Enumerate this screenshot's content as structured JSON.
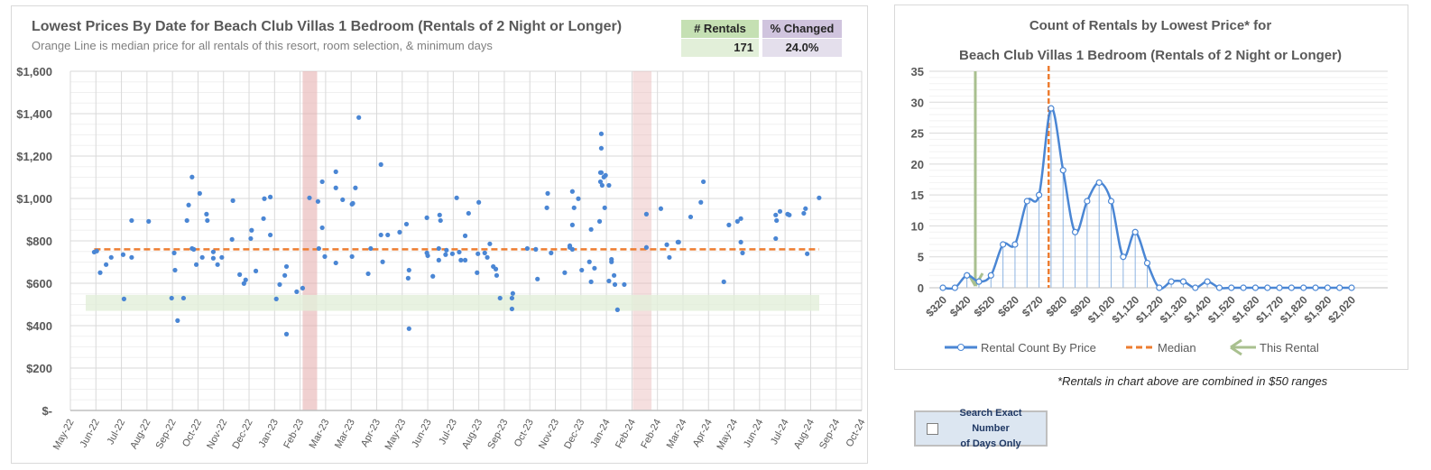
{
  "left_header": {
    "title": "Lowest Prices By Date for Beach Club Villas 1 Bedroom (Rentals of 2 Night or Longer)",
    "subtitle": "Orange Line is median price for all rentals of this resort, room selection, & minimum days",
    "rentals_label": "# Rentals",
    "rentals_value": "171",
    "changed_label": "% Changed",
    "changed_value": "24.0%"
  },
  "colors": {
    "points": "#4a86d4",
    "median": "#ed7d31",
    "band": "#e2efd9",
    "shade": "#e6b0b0",
    "rental_green": "#a9c08f",
    "rentals_head": "#c5e0b3",
    "rentals_body": "#e2efd9",
    "changed_head": "#d0c4de",
    "changed_body": "#e4dfec"
  },
  "chart_data": [
    {
      "type": "scatter",
      "title": "Lowest Prices By Date for Beach Club Villas 1 Bedroom (Rentals of 2 Night or Longer)",
      "x_unit": "days since 2022-05-01 (axis ticks every 30 days)",
      "x_tick_labels": [
        "May-22",
        "Jun-22",
        "Jul-22",
        "Aug-22",
        "Sep-22",
        "Oct-22",
        "Nov-22",
        "Dec-22",
        "Jan-23",
        "Feb-23",
        "Mar-23",
        "Mar-23",
        "Apr-23",
        "May-23",
        "Jun-23",
        "Jul-23",
        "Aug-23",
        "Sep-23",
        "Oct-23",
        "Nov-23",
        "Dec-23",
        "Jan-24",
        "Feb-24",
        "Feb-24",
        "Mar-24",
        "Apr-24",
        "May-24",
        "Jun-24",
        "Jul-24",
        "Aug-24",
        "Sep-24",
        "Oct-24"
      ],
      "y_tick_labels": [
        "$-",
        "$200",
        "$400",
        "$600",
        "$800",
        "$1,000",
        "$1,200",
        "$1,400",
        "$1,600"
      ],
      "ylim": [
        0,
        1600
      ],
      "median_price": 760,
      "median_x_range": [
        28,
        880
      ],
      "this_rental_band": [
        470,
        545
      ],
      "shaded_date_ranges": [
        [
          273,
          290
        ],
        [
          661,
          683
        ]
      ],
      "points": [
        [
          28,
          747
        ],
        [
          31,
          752
        ],
        [
          35,
          650
        ],
        [
          42,
          688
        ],
        [
          48,
          722
        ],
        [
          62,
          735
        ],
        [
          63,
          526
        ],
        [
          72,
          896
        ],
        [
          72,
          722
        ],
        [
          92,
          892
        ],
        [
          119,
          530
        ],
        [
          122,
          743
        ],
        [
          123,
          662
        ],
        [
          126,
          424
        ],
        [
          133,
          530
        ],
        [
          137,
          896
        ],
        [
          139,
          969
        ],
        [
          143,
          1101
        ],
        [
          143,
          764
        ],
        [
          145,
          760
        ],
        [
          148,
          688
        ],
        [
          152,
          1024
        ],
        [
          155,
          722
        ],
        [
          160,
          926
        ],
        [
          161,
          896
        ],
        [
          168,
          748
        ],
        [
          168,
          718
        ],
        [
          173,
          688
        ],
        [
          178,
          722
        ],
        [
          190,
          807
        ],
        [
          191,
          990
        ],
        [
          199,
          641
        ],
        [
          204,
          599
        ],
        [
          206,
          616
        ],
        [
          212,
          811
        ],
        [
          213,
          850
        ],
        [
          218,
          658
        ],
        [
          227,
          905
        ],
        [
          228,
          999
        ],
        [
          235,
          1007
        ],
        [
          235,
          828
        ],
        [
          242,
          526
        ],
        [
          246,
          594
        ],
        [
          252,
          637
        ],
        [
          254,
          679
        ],
        [
          254,
          360
        ],
        [
          266,
          560
        ],
        [
          273,
          577
        ],
        [
          281,
          1003
        ],
        [
          291,
          986
        ],
        [
          292,
          764
        ],
        [
          296,
          1079
        ],
        [
          296,
          862
        ],
        [
          299,
          726
        ],
        [
          312,
          1126
        ],
        [
          312,
          1050
        ],
        [
          312,
          696
        ],
        [
          320,
          994
        ],
        [
          331,
          973
        ],
        [
          332,
          977
        ],
        [
          331,
          726
        ],
        [
          335,
          1050
        ],
        [
          339,
          1382
        ],
        [
          350,
          645
        ],
        [
          353,
          764
        ],
        [
          365,
          1160
        ],
        [
          365,
          828
        ],
        [
          367,
          701
        ],
        [
          373,
          828
        ],
        [
          387,
          841
        ],
        [
          395,
          879
        ],
        [
          397,
          624
        ],
        [
          398,
          662
        ],
        [
          398,
          386
        ],
        [
          419,
          909
        ],
        [
          419,
          743
        ],
        [
          420,
          730
        ],
        [
          426,
          633
        ],
        [
          433,
          764
        ],
        [
          433,
          709
        ],
        [
          434,
          922
        ],
        [
          435,
          896
        ],
        [
          441,
          735
        ],
        [
          442,
          756
        ],
        [
          449,
          739
        ],
        [
          454,
          1003
        ],
        [
          457,
          747
        ],
        [
          459,
          709
        ],
        [
          464,
          824
        ],
        [
          464,
          709
        ],
        [
          468,
          930
        ],
        [
          478,
          650
        ],
        [
          479,
          739
        ],
        [
          480,
          982
        ],
        [
          487,
          743
        ],
        [
          490,
          722
        ],
        [
          493,
          786
        ],
        [
          497,
          679
        ],
        [
          500,
          667
        ],
        [
          501,
          637
        ],
        [
          505,
          530
        ],
        [
          519,
          530
        ],
        [
          519,
          479
        ],
        [
          520,
          552
        ],
        [
          537,
          764
        ],
        [
          547,
          760
        ],
        [
          549,
          620
        ],
        [
          560,
          956
        ],
        [
          561,
          1024
        ],
        [
          565,
          743
        ],
        [
          581,
          650
        ],
        [
          587,
          777
        ],
        [
          587,
          769
        ],
        [
          590,
          760
        ],
        [
          590,
          875
        ],
        [
          590,
          1033
        ],
        [
          592,
          956
        ],
        [
          597,
          999
        ],
        [
          601,
          662
        ],
        [
          610,
          701
        ],
        [
          612,
          854
        ],
        [
          612,
          607
        ],
        [
          616,
          671
        ],
        [
          622,
          892
        ],
        [
          624,
          1305
        ],
        [
          624,
          1237
        ],
        [
          623,
          1122
        ],
        [
          624,
          1122
        ],
        [
          623,
          1079
        ],
        [
          625,
          1062
        ],
        [
          627,
          1101
        ],
        [
          629,
          1109
        ],
        [
          628,
          956
        ],
        [
          633,
          1062
        ],
        [
          636,
          713
        ],
        [
          636,
          701
        ],
        [
          633,
          611
        ],
        [
          639,
          637
        ],
        [
          640,
          594
        ],
        [
          643,
          475
        ],
        [
          651,
          594
        ],
        [
          677,
          926
        ],
        [
          677,
          769
        ],
        [
          694,
          952
        ],
        [
          701,
          782
        ],
        [
          704,
          722
        ],
        [
          714,
          794
        ],
        [
          715,
          794
        ],
        [
          729,
          913
        ],
        [
          741,
          982
        ],
        [
          744,
          1079
        ],
        [
          768,
          607
        ],
        [
          774,
          875
        ],
        [
          784,
          892
        ],
        [
          788,
          905
        ],
        [
          788,
          794
        ],
        [
          790,
          743
        ],
        [
          829,
          811
        ],
        [
          829,
          922
        ],
        [
          830,
          896
        ],
        [
          834,
          939
        ],
        [
          843,
          926
        ],
        [
          845,
          922
        ],
        [
          862,
          930
        ],
        [
          864,
          952
        ],
        [
          866,
          739
        ],
        [
          880,
          1003
        ]
      ]
    },
    {
      "type": "line",
      "title_line1": "Count of Rentals by Lowest Price* for",
      "title_line2": "Beach Club Villas 1 Bedroom (Rentals of 2 Night or Longer)",
      "x": [
        320,
        370,
        420,
        470,
        520,
        570,
        620,
        670,
        720,
        770,
        820,
        870,
        920,
        970,
        1020,
        1070,
        1120,
        1170,
        1220,
        1270,
        1320,
        1370,
        1420,
        1470,
        1520,
        1570,
        1620,
        1670,
        1720,
        1770,
        1820,
        1870,
        1920,
        1970,
        2020
      ],
      "values": [
        0,
        0,
        2,
        1,
        2,
        7,
        7,
        14,
        15,
        29,
        19,
        9,
        14,
        17,
        14,
        5,
        9,
        4,
        0,
        1,
        1,
        0,
        1,
        0,
        0,
        0,
        0,
        0,
        0,
        0,
        0,
        0,
        0,
        0,
        0
      ],
      "x_tick_labels": [
        "$320",
        "$420",
        "$520",
        "$620",
        "$720",
        "$820",
        "$920",
        "$1,020",
        "$1,120",
        "$1,220",
        "$1,320",
        "$1,420",
        "$1,520",
        "$1,620",
        "$1,720",
        "$1,820",
        "$1,920",
        "$2,020"
      ],
      "y_tick_labels": [
        "0",
        "5",
        "10",
        "15",
        "20",
        "25",
        "30",
        "35"
      ],
      "ylim": [
        0,
        35
      ],
      "median": 760,
      "this_rental": 455,
      "legend": {
        "series": "Rental Count By Price",
        "median": "Median",
        "this_rental": "This Rental",
        "position": "bottom"
      }
    }
  ],
  "footnote": "*Rentals in chart above are combined in $50 ranges",
  "checkbox": {
    "label_line1": "Search Exact Number",
    "label_line2": "of Days Only",
    "checked": false
  }
}
